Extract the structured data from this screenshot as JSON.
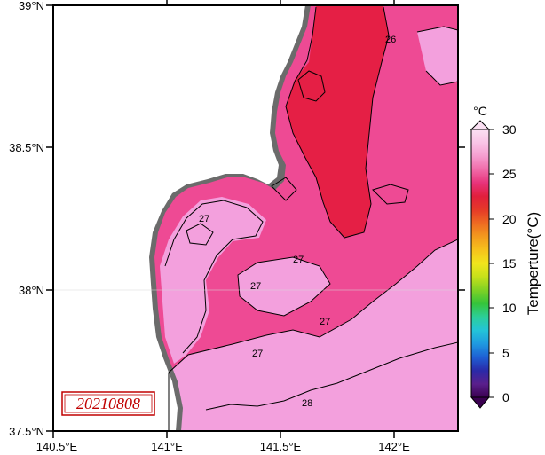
{
  "map": {
    "lat_labels": [
      "39°N",
      "38.5°N",
      "38°N",
      "37.5°N"
    ],
    "lon_labels": [
      "140.5°E",
      "141°E",
      "141.5°E",
      "142°E"
    ],
    "date_stamp": "20210808",
    "contour_labels": [
      "26",
      "27",
      "27",
      "27",
      "27",
      "27",
      "28"
    ]
  },
  "colorbar": {
    "unit": "°C",
    "title": "Temperture(°C)",
    "tick_labels": [
      "30",
      "25",
      "20",
      "15",
      "10",
      "5",
      "0"
    ],
    "colors": [
      "#3a0050",
      "#5a1f8c",
      "#2a2aa8",
      "#1e5fd4",
      "#1f9ae0",
      "#23c4d8",
      "#2ccf9a",
      "#35c43a",
      "#7fd124",
      "#c6e01a",
      "#f1e51c",
      "#f6c21c",
      "#f39a1e",
      "#ee6b22",
      "#e53a28",
      "#e01f3c",
      "#e8337a",
      "#f06aa8",
      "#f59dcf",
      "#f9c4e6",
      "#fbe0f3"
    ]
  },
  "palette": {
    "sst_27": "#ee4a94",
    "sst_26": "#e51f45",
    "sst_28": "#f3a0dd",
    "land": "#ffffff",
    "coast_shadow": "#6b6b6b"
  }
}
